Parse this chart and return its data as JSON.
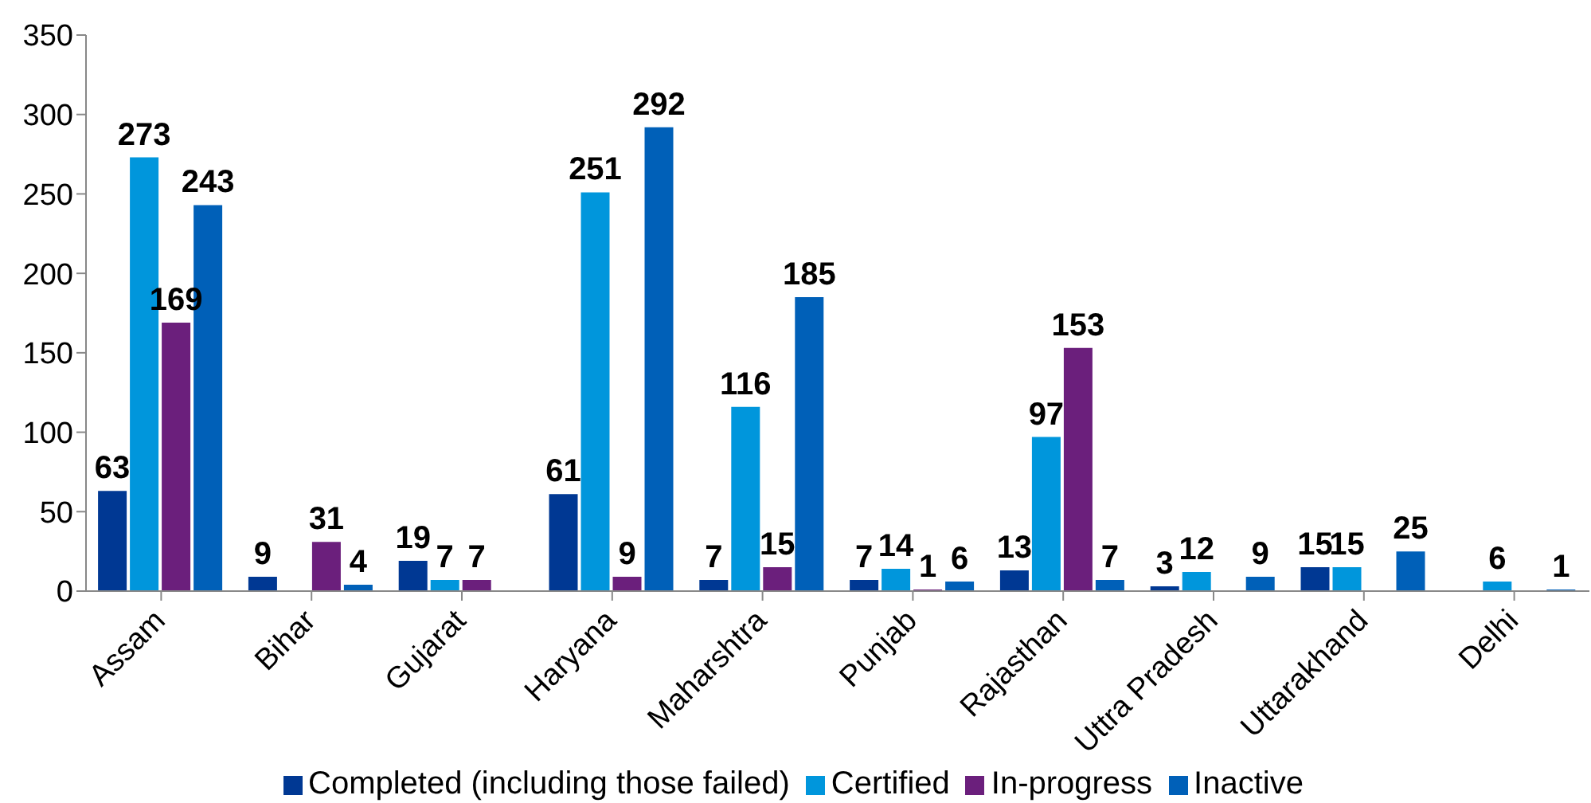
{
  "chart_data": {
    "type": "bar",
    "categories": [
      "Assam",
      "Bihar",
      "Gujarat",
      "Haryana",
      "Maharshtra",
      "Punjab",
      "Rajasthan",
      "Uttra Pradesh",
      "Uttarakhand",
      "Delhi"
    ],
    "series": [
      {
        "name": "Completed (including those failed)",
        "color": "#003893",
        "values": [
          63,
          9,
          19,
          61,
          7,
          7,
          13,
          3,
          15,
          null
        ]
      },
      {
        "name": "Certified",
        "color": "#0096dc",
        "values": [
          273,
          null,
          7,
          251,
          116,
          14,
          97,
          12,
          15,
          6
        ]
      },
      {
        "name": "In-progress",
        "color": "#6b1f7c",
        "values": [
          169,
          31,
          7,
          9,
          15,
          1,
          153,
          null,
          null,
          null
        ]
      },
      {
        "name": "Inactive",
        "color": "#0060b8",
        "values": [
          243,
          4,
          null,
          292,
          185,
          6,
          7,
          9,
          25,
          1
        ]
      }
    ],
    "ylim": [
      0,
      350
    ],
    "yticks": [
      0,
      50,
      100,
      150,
      200,
      250,
      300,
      350
    ],
    "grid": false,
    "legend": "bottom",
    "data_labels": true
  }
}
